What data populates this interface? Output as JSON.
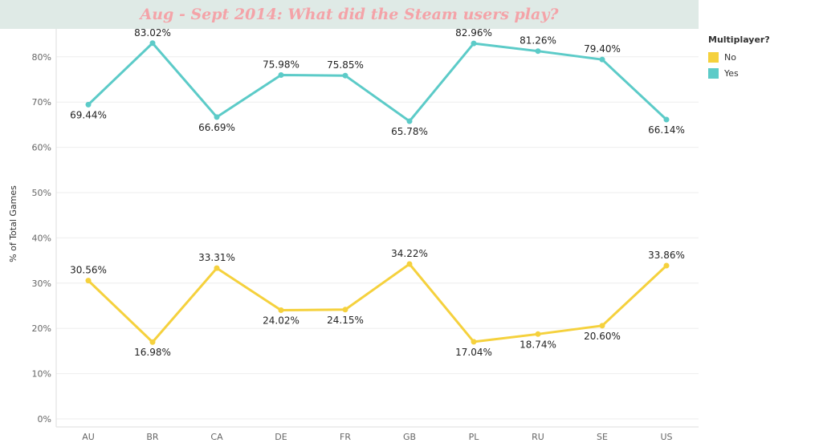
{
  "page": {
    "title": "Aug - Sept 2014: What did the Steam users play?",
    "title_color": "#f4a3a8",
    "title_bg": "#dfeae6"
  },
  "legend": {
    "title": "Multiplayer?",
    "items": [
      {
        "label": "No",
        "color": "#f5d13d"
      },
      {
        "label": "Yes",
        "color": "#5ccbc8"
      }
    ]
  },
  "chart_data": {
    "type": "line",
    "title": "Aug - Sept 2014: What did the Steam users play?",
    "xlabel": "",
    "ylabel": "% of Total Games",
    "categories": [
      "AU",
      "BR",
      "CA",
      "DE",
      "FR",
      "GB",
      "PL",
      "RU",
      "SE",
      "US"
    ],
    "ylim": [
      0,
      85
    ],
    "yticks": [
      0,
      10,
      20,
      30,
      40,
      50,
      60,
      70,
      80
    ],
    "ytick_labels": [
      "0%",
      "10%",
      "20%",
      "30%",
      "40%",
      "50%",
      "60%",
      "70%",
      "80%"
    ],
    "grid": true,
    "legend_position": "right",
    "series": [
      {
        "name": "No",
        "color": "#f5d13d",
        "values": [
          30.56,
          16.98,
          33.31,
          24.02,
          24.15,
          34.22,
          17.04,
          18.74,
          20.6,
          33.86
        ],
        "labels": [
          "30.56%",
          "16.98%",
          "33.31%",
          "24.02%",
          "24.15%",
          "34.22%",
          "17.04%",
          "18.74%",
          "20.60%",
          "33.86%"
        ],
        "label_pos": [
          "above",
          "below",
          "above",
          "below",
          "below",
          "above",
          "below",
          "below",
          "below",
          "above"
        ]
      },
      {
        "name": "Yes",
        "color": "#5ccbc8",
        "values": [
          69.44,
          83.02,
          66.69,
          75.98,
          75.85,
          65.78,
          82.96,
          81.26,
          79.4,
          66.14
        ],
        "labels": [
          "69.44%",
          "83.02%",
          "66.69%",
          "75.98%",
          "75.85%",
          "65.78%",
          "82.96%",
          "81.26%",
          "79.40%",
          "66.14%"
        ],
        "label_pos": [
          "below",
          "above",
          "below",
          "above",
          "above",
          "below",
          "above",
          "above",
          "above",
          "below"
        ]
      }
    ]
  }
}
